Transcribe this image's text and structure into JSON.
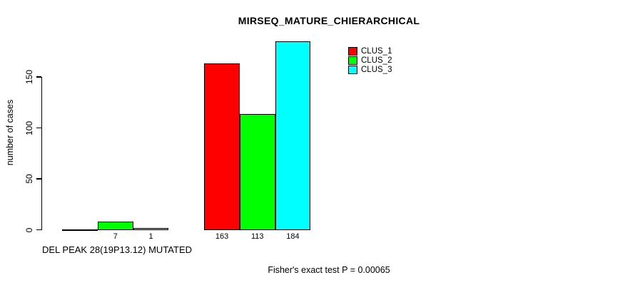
{
  "chart_data": {
    "type": "bar",
    "title": "MIRSEQ_MATURE_CHIERARCHICAL",
    "ylabel": "number of cases",
    "xlabel": "DEL PEAK 28(19P13.12) MUTATED",
    "annotation": "Fisher's exact test P = 0.00065",
    "yticks": [
      0,
      50,
      100,
      150
    ],
    "ylim": [
      0,
      190
    ],
    "grid": false,
    "legend_position": "top-right-inside",
    "categories": [
      "MUTATED group 1",
      "group 2"
    ],
    "series": [
      {
        "name": "CLUS_1",
        "color": "#ff0000",
        "values": [
          0,
          163
        ]
      },
      {
        "name": "CLUS_2",
        "color": "#00ff00",
        "values": [
          7,
          113
        ]
      },
      {
        "name": "CLUS_3",
        "color": "#00ffff",
        "values": [
          1,
          184
        ]
      }
    ],
    "bar_labels": [
      [
        "",
        "7",
        "1"
      ],
      [
        "163",
        "113",
        "184"
      ]
    ],
    "legend": {
      "entries": [
        {
          "label": "CLUS_1",
          "color": "#ff0000"
        },
        {
          "label": "CLUS_2",
          "color": "#00ff00"
        },
        {
          "label": "CLUS_3",
          "color": "#00ffff"
        }
      ]
    }
  }
}
